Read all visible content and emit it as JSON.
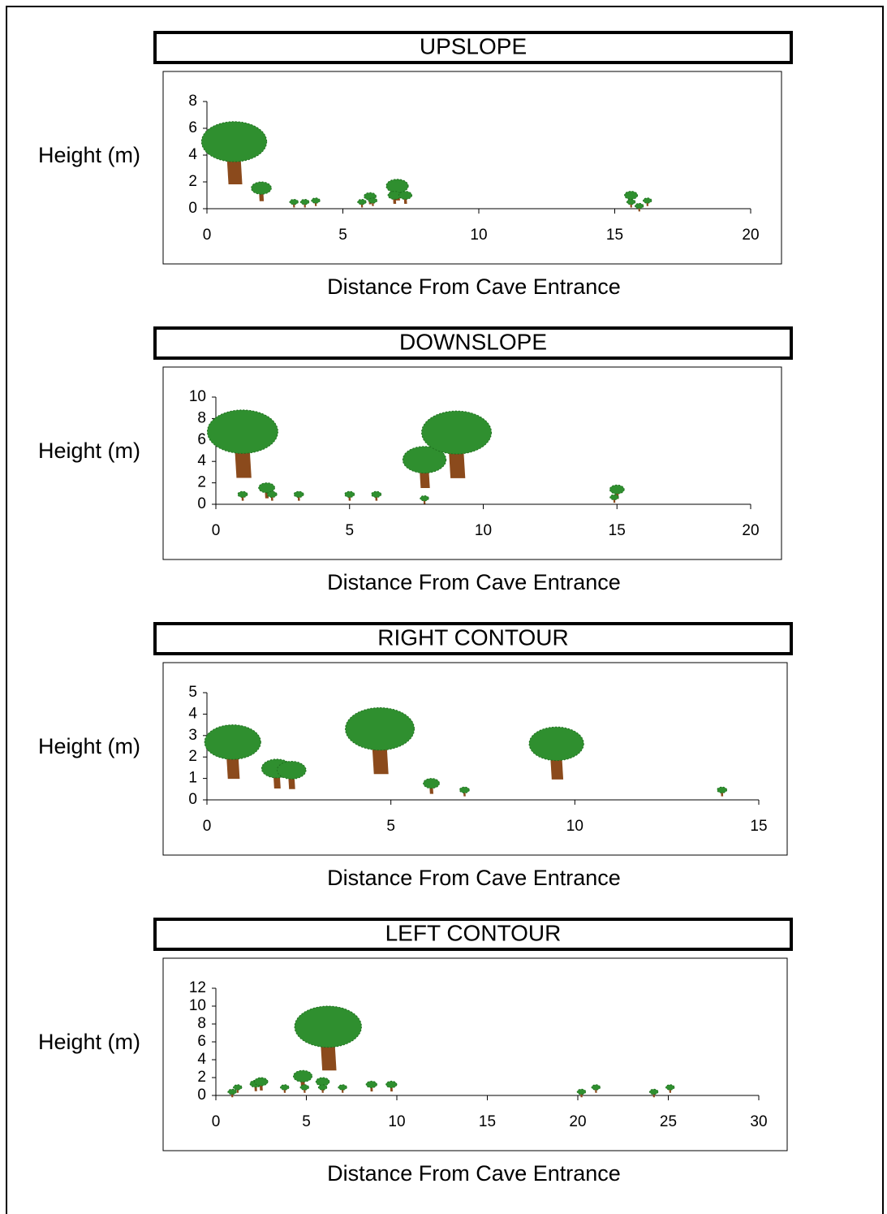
{
  "chart_data": [
    {
      "type": "scatter",
      "title": "UPSLOPE",
      "x_label": "Distance From Cave Entrance",
      "y_label": "Height (m)",
      "x": [
        1,
        2,
        3.2,
        3.6,
        4,
        5.7,
        6,
        6.1,
        7,
        6.9,
        7.3,
        15.6,
        15.6,
        15.9,
        16.2
      ],
      "values": [
        6.5,
        2,
        0.7,
        0.7,
        0.8,
        0.7,
        1.2,
        0.8,
        2.2,
        1.3,
        1.3,
        1.3,
        0.7,
        0.4,
        0.8
      ],
      "xlim": [
        0,
        20
      ],
      "xticks": [
        0,
        5,
        10,
        15,
        20
      ],
      "ylim": [
        0,
        8
      ],
      "yticks": [
        0,
        2,
        4,
        6,
        8
      ],
      "color": "#2f8f2f",
      "trunk_color": "#8b4a1c"
    },
    {
      "type": "scatter",
      "title": "DOWNSLOPE",
      "x_label": "Distance From Cave Entrance",
      "y_label": "Height (m)",
      "x": [
        1,
        1,
        1.9,
        2.1,
        3.1,
        5,
        6,
        7.8,
        7.8,
        9,
        15,
        14.9
      ],
      "values": [
        8.8,
        1.2,
        2,
        1.2,
        1.2,
        1.2,
        1.2,
        5.4,
        0.8,
        8.7,
        1.8,
        0.9
      ],
      "xlim": [
        0,
        20
      ],
      "xticks": [
        0,
        5,
        10,
        15,
        20
      ],
      "ylim": [
        0,
        10
      ],
      "yticks": [
        0,
        2,
        4,
        6,
        8,
        10
      ],
      "color": "#2f8f2f",
      "trunk_color": "#8b4a1c"
    },
    {
      "type": "scatter",
      "title": "RIGHT CONTOUR",
      "x_label": "Distance From Cave Entrance",
      "y_label": "Height (m)",
      "x": [
        0.7,
        1.9,
        2.3,
        4.7,
        6.1,
        7,
        9.5,
        14
      ],
      "values": [
        3.5,
        1.9,
        1.8,
        4.3,
        1,
        0.6,
        3.4,
        0.6
      ],
      "xlim": [
        0,
        15
      ],
      "xticks": [
        0,
        5,
        10,
        15
      ],
      "ylim": [
        0,
        5
      ],
      "yticks": [
        0,
        1,
        2,
        3,
        4,
        5
      ],
      "color": "#2f8f2f",
      "trunk_color": "#8b4a1c"
    },
    {
      "type": "scatter",
      "title": "LEFT CONTOUR",
      "x_label": "Distance From Cave Entrance",
      "y_label": "Height (m)",
      "x": [
        0.9,
        1.2,
        2.2,
        2.5,
        3.8,
        4.8,
        4.9,
        5.9,
        5.9,
        7,
        8.6,
        9.7,
        6.2,
        20.2,
        21,
        24.2,
        25.1
      ],
      "values": [
        0.7,
        1.2,
        1.7,
        2,
        1.2,
        2.8,
        1.2,
        2,
        1.2,
        1.2,
        1.6,
        1.6,
        10,
        0.7,
        1.2,
        0.7,
        1.2
      ],
      "xlim": [
        0,
        30
      ],
      "xticks": [
        0,
        5,
        10,
        15,
        20,
        25,
        30
      ],
      "ylim": [
        0,
        12
      ],
      "yticks": [
        0,
        2,
        4,
        6,
        8,
        10,
        12
      ],
      "color": "#2f8f2f",
      "trunk_color": "#8b4a1c"
    }
  ]
}
